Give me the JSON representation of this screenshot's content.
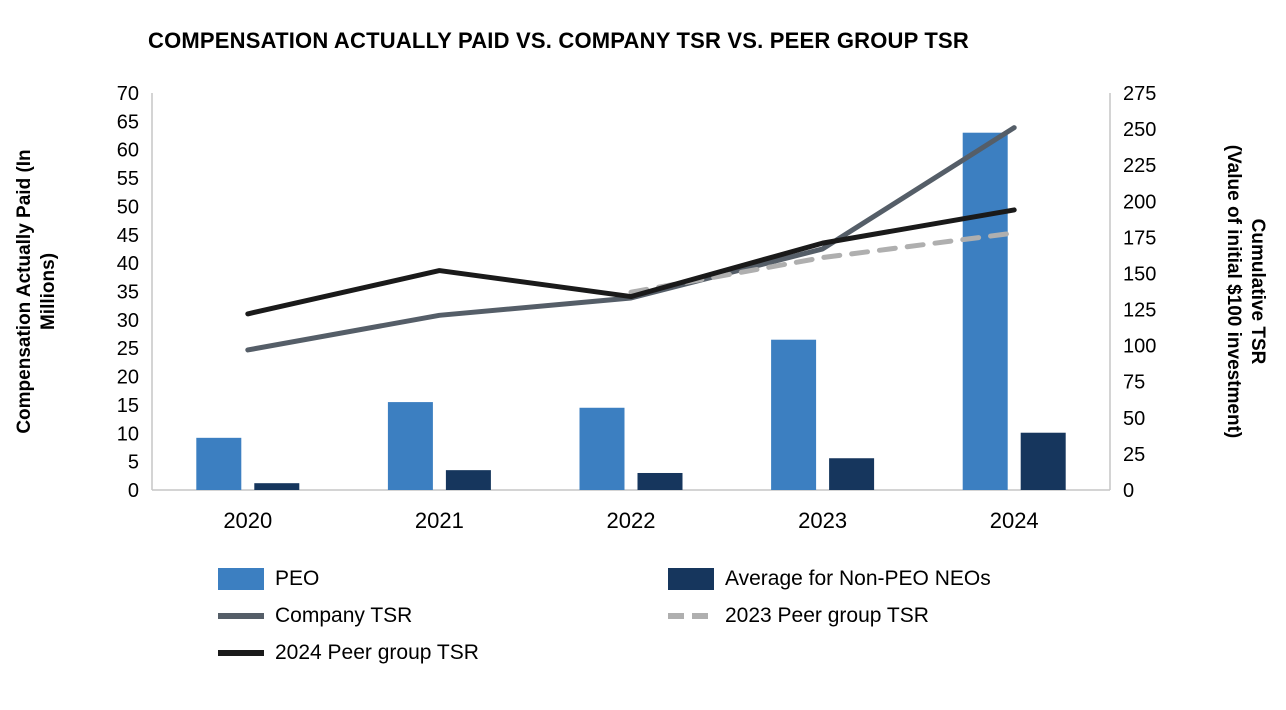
{
  "title": "COMPENSATION ACTUALLY PAID VS. COMPANY TSR VS. PEER GROUP TSR",
  "chart_data": {
    "type": "combo-bar-line",
    "categories": [
      "2020",
      "2021",
      "2022",
      "2023",
      "2024"
    ],
    "bar_series": [
      {
        "name": "PEO",
        "axis": "left",
        "color": "#3C7FC1",
        "values": [
          9.2,
          15.5,
          14.5,
          26.5,
          63.0
        ]
      },
      {
        "name": "Average for Non-PEO NEOs",
        "axis": "left",
        "color": "#16365D",
        "values": [
          1.2,
          3.5,
          3.0,
          5.6,
          10.1
        ]
      }
    ],
    "line_series": [
      {
        "name": "Company TSR",
        "axis": "right",
        "color": "#555E68",
        "style": "solid",
        "values": [
          97,
          121,
          133,
          167,
          251
        ]
      },
      {
        "name": "2023 Peer group TSR",
        "axis": "right",
        "color": "#AFAFAF",
        "style": "dashed",
        "values": [
          null,
          null,
          137,
          161,
          178
        ]
      },
      {
        "name": "2024 Peer group TSR",
        "axis": "right",
        "color": "#1A1A1A",
        "style": "solid",
        "values": [
          122,
          152,
          134,
          171,
          194
        ]
      }
    ],
    "left_axis": {
      "label": "Compensation Actually Paid (In Millions)",
      "label_lines": [
        "Compensation Actually Paid (In",
        "Millions)"
      ],
      "min": 0,
      "max": 70,
      "step": 5
    },
    "right_axis": {
      "label": "Cumulative TSR (Value of initial $100 investment)",
      "label_lines": [
        "Cumulative TSR",
        "(Value of initial $100 investment)"
      ],
      "min": 0,
      "max": 275,
      "step": 25
    },
    "grid": false,
    "legend_position": "bottom"
  },
  "legend": {
    "items": [
      {
        "label": "PEO",
        "marker": "bar",
        "color": "#3C7FC1"
      },
      {
        "label": "Average for Non-PEO NEOs",
        "marker": "bar",
        "color": "#16365D"
      },
      {
        "label": "Company TSR",
        "marker": "line-solid",
        "color": "#555E68"
      },
      {
        "label": "2023 Peer group TSR",
        "marker": "line-dashed",
        "color": "#AFAFAF"
      },
      {
        "label": "2024 Peer group TSR",
        "marker": "line-solid",
        "color": "#1A1A1A"
      }
    ]
  },
  "colors": {
    "axis_line": "#C6C6C6",
    "text": "#000000"
  }
}
